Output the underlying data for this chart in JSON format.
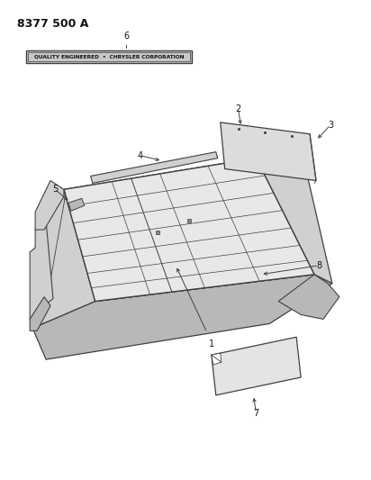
{
  "title": "8377 500 A",
  "badge_text": "QUALITY ENGINEERED  •  CHRYSLER CORPORATION",
  "bg_color": "#ffffff",
  "line_color": "#404040",
  "text_color": "#111111",
  "badge_fill": "#c8c8c8",
  "badge_edge": "#404040",
  "floor_fill": "#e8e8e8",
  "side_fill": "#d0d0d0",
  "dark_fill": "#b8b8b8",
  "panel_fill": "#dcdcdc",
  "mat_fill": "#e4e4e4"
}
